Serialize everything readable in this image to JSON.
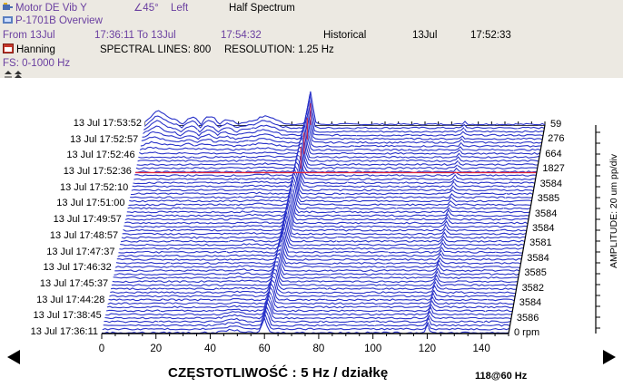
{
  "header": {
    "channel": "Motor DE Vib Y",
    "angle": "∠45°",
    "orientation": "Left",
    "spectrum_type": "Half Spectrum",
    "asset": "P-1701B Overview",
    "range": {
      "from_label": "From 13Jul",
      "from_time": "17:36:11 To 13Jul",
      "to_time": "17:54:32",
      "mode": "Historical",
      "cursor_date": "13Jul",
      "cursor_time": "17:52:33"
    },
    "window": "Hanning",
    "spectral_lines": "SPECTRAL LINES: 800",
    "resolution": "RESOLUTION:  1.25 Hz",
    "full_scale": "FS: 0-1000 Hz"
  },
  "chart_data": {
    "type": "area",
    "subtype": "waterfall",
    "xlabel": "CZĘSTOTLIWOŚĆ : 5 Hz / działkę",
    "ylabel_right": "AMPLITUDE: 20 um pp/div",
    "footer_speed": "118@60 Hz",
    "xlim": [
      0,
      150
    ],
    "xticks": [
      "0",
      "20",
      "40",
      "60",
      "80",
      "100",
      "120",
      "140"
    ],
    "grid": true,
    "time_labels": [
      "13 Jul 17:53:52",
      "13 Jul 17:52:57",
      "13 Jul 17:52:46",
      "13 Jul 17:52:36",
      "13 Jul 17:52:10",
      "13 Jul 17:51:00",
      "13 Jul 17:49:57",
      "13 Jul 17:48:57",
      "13 Jul 17:47:37",
      "13 Jul 17:46:32",
      "13 Jul 17:45:37",
      "13 Jul 17:44:28",
      "13 Jul 17:38:45",
      "13 Jul 17:36:11"
    ],
    "speed_labels": [
      "59",
      "276",
      "664",
      "1827",
      "3584",
      "3585",
      "3584",
      "3584",
      "3581",
      "3584",
      "3585",
      "3582",
      "3584",
      "3586",
      "0 rpm"
    ],
    "highlight_time": "13 Jul 17:52:36",
    "peak_hz": 60,
    "harmonic_hz": 120,
    "colors": {
      "trace": "#2a33c9",
      "highlight": "#e3243a",
      "background": "#ffffff",
      "header": "#ece9e2"
    }
  },
  "nav": {
    "left_arrow": "arrow-left-icon",
    "right_arrow": "arrow-right-icon"
  }
}
